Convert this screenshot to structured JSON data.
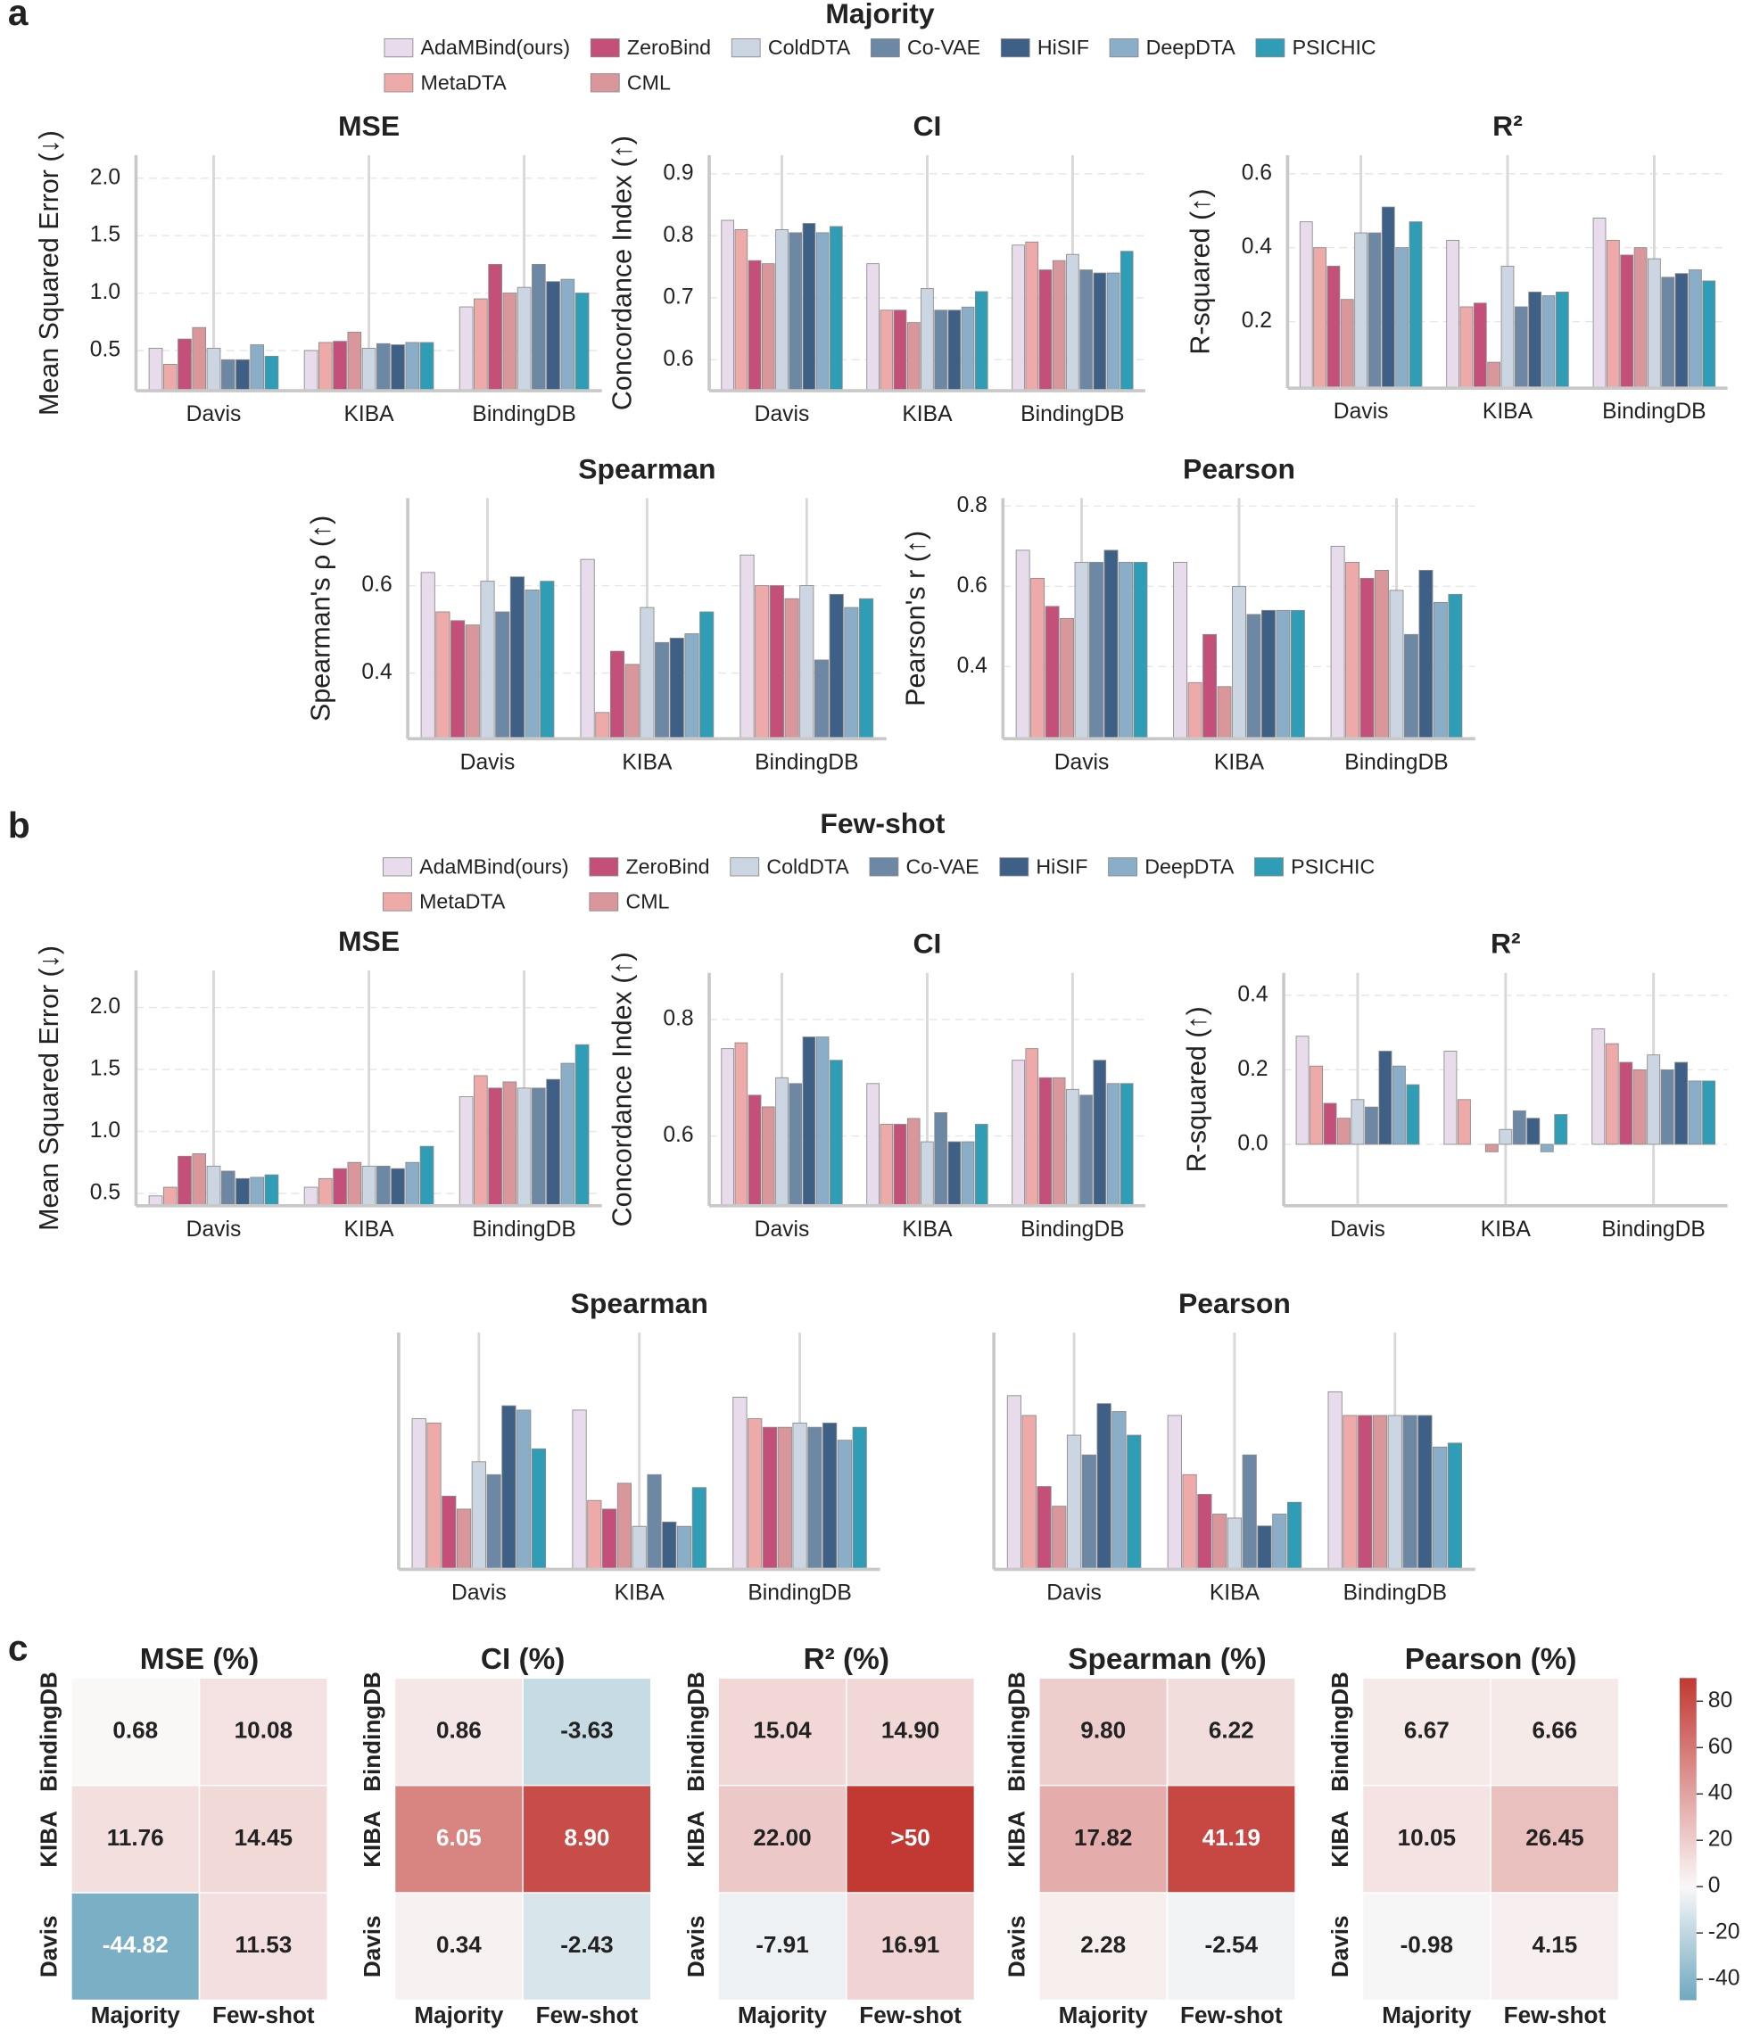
{
  "panels": [
    {
      "label": "a",
      "title": "Majority",
      "legend": [
        {
          "name": "AdaMBind(ours)",
          "color": "#e8dcec"
        },
        {
          "name": "MetaDTA",
          "color": "#eeaaa8"
        },
        {
          "name": "ZeroBind",
          "color": "#c4507a"
        },
        {
          "name": "CML",
          "color": "#d9979b"
        },
        {
          "name": "ColdDTA",
          "color": "#ccd6e2"
        },
        {
          "name": "Co-VAE",
          "color": "#6d88a5"
        },
        {
          "name": "HiSIF",
          "color": "#3e5f86"
        },
        {
          "name": "DeepDTA",
          "color": "#8aaec7"
        },
        {
          "name": "PSICHIC",
          "color": "#2f9db6"
        }
      ]
    },
    {
      "label": "b",
      "title": "Few-shot",
      "legend": [
        {
          "name": "AdaMBind(ours)",
          "color": "#e8dcec"
        },
        {
          "name": "MetaDTA",
          "color": "#eeaaa8"
        },
        {
          "name": "ZeroBind",
          "color": "#c4507a"
        },
        {
          "name": "CML",
          "color": "#d9979b"
        },
        {
          "name": "ColdDTA",
          "color": "#ccd6e2"
        },
        {
          "name": "Co-VAE",
          "color": "#6d88a5"
        },
        {
          "name": "HiSIF",
          "color": "#3e5f86"
        },
        {
          "name": "DeepDTA",
          "color": "#8aaec7"
        },
        {
          "name": "PSICHIC",
          "color": "#2f9db6"
        }
      ]
    },
    {
      "label": "c",
      "colorbar": {
        "lim": [
          -49,
          90
        ],
        "ticks": [
          -40,
          -20,
          0,
          20,
          40,
          60,
          80
        ]
      }
    }
  ],
  "chart_data": [
    {
      "type": "bar",
      "title": "MSE",
      "ylabel": "Mean Squared Error (↓)",
      "categories": [
        "Davis",
        "KIBA",
        "BindingDB"
      ],
      "ylim": [
        0.15,
        2.2
      ],
      "yticks": [
        0.5,
        {
          "value": 1,
          "label": "1.0"
        },
        1.5,
        {
          "value": 2,
          "label": "2.0"
        }
      ],
      "grid": true,
      "series": [
        {
          "values": [
            0.52,
            0.5,
            0.88
          ]
        },
        {
          "values": [
            0.38,
            0.57,
            0.95
          ]
        },
        {
          "values": [
            0.6,
            0.58,
            1.25
          ]
        },
        {
          "values": [
            0.7,
            0.66,
            1.0
          ]
        },
        {
          "values": [
            0.52,
            0.52,
            1.05
          ]
        },
        {
          "values": [
            0.42,
            0.56,
            1.25
          ]
        },
        {
          "values": [
            0.42,
            0.55,
            1.1
          ]
        },
        {
          "values": [
            0.55,
            0.57,
            1.12
          ]
        },
        {
          "values": [
            0.45,
            0.57,
            1.0
          ]
        }
      ]
    },
    {
      "type": "bar",
      "title": "CI",
      "ylabel": "Concordance Index (↑)",
      "categories": [
        "Davis",
        "KIBA",
        "BindingDB"
      ],
      "ylim": [
        0.55,
        0.93
      ],
      "yticks": [
        0.6,
        0.7,
        0.8,
        0.9
      ],
      "grid": true,
      "series": [
        {
          "values": [
            0.825,
            0.755,
            0.785
          ]
        },
        {
          "values": [
            0.81,
            0.68,
            0.79
          ]
        },
        {
          "values": [
            0.76,
            0.68,
            0.745
          ]
        },
        {
          "values": [
            0.755,
            0.66,
            0.76
          ]
        },
        {
          "values": [
            0.81,
            0.715,
            0.77
          ]
        },
        {
          "values": [
            0.805,
            0.68,
            0.745
          ]
        },
        {
          "values": [
            0.82,
            0.68,
            0.74
          ]
        },
        {
          "values": [
            0.805,
            0.685,
            0.74
          ]
        },
        {
          "values": [
            0.815,
            0.71,
            0.775
          ]
        }
      ]
    },
    {
      "type": "bar",
      "title": "R²",
      "ylabel": "R-squared (↑)",
      "categories": [
        "Davis",
        "KIBA",
        "BindingDB"
      ],
      "ylim": [
        0.02,
        0.65
      ],
      "yticks": [
        0.2,
        0.4,
        0.6
      ],
      "grid": true,
      "series": [
        {
          "values": [
            0.47,
            0.42,
            0.48
          ]
        },
        {
          "values": [
            0.4,
            0.24,
            0.42
          ]
        },
        {
          "values": [
            0.35,
            0.25,
            0.38
          ]
        },
        {
          "values": [
            0.26,
            0.09,
            0.4
          ]
        },
        {
          "values": [
            0.44,
            0.35,
            0.37
          ]
        },
        {
          "values": [
            0.44,
            0.24,
            0.32
          ]
        },
        {
          "values": [
            0.51,
            0.28,
            0.33
          ]
        },
        {
          "values": [
            0.4,
            0.27,
            0.34
          ]
        },
        {
          "values": [
            0.47,
            0.28,
            0.31
          ]
        }
      ]
    },
    {
      "type": "bar",
      "title": "Spearman",
      "ylabel": "Spearman's ρ (↑)",
      "categories": [
        "Davis",
        "KIBA",
        "BindingDB"
      ],
      "ylim": [
        0.25,
        0.8
      ],
      "yticks": [
        0.4,
        0.6
      ],
      "grid": true,
      "series": [
        {
          "values": [
            0.63,
            0.66,
            0.67
          ]
        },
        {
          "values": [
            0.54,
            0.31,
            0.6
          ]
        },
        {
          "values": [
            0.52,
            0.45,
            0.6
          ]
        },
        {
          "values": [
            0.51,
            0.42,
            0.57
          ]
        },
        {
          "values": [
            0.61,
            0.55,
            0.6
          ]
        },
        {
          "values": [
            0.54,
            0.47,
            0.43
          ]
        },
        {
          "values": [
            0.62,
            0.48,
            0.58
          ]
        },
        {
          "values": [
            0.59,
            0.49,
            0.55
          ]
        },
        {
          "values": [
            0.61,
            0.54,
            0.57
          ]
        }
      ]
    },
    {
      "type": "bar",
      "title": "Pearson",
      "ylabel": "Pearson's r (↑)",
      "categories": [
        "Davis",
        "KIBA",
        "BindingDB"
      ],
      "ylim": [
        0.22,
        0.82
      ],
      "yticks": [
        0.4,
        0.6,
        0.8
      ],
      "grid": true,
      "series": [
        {
          "values": [
            0.69,
            0.66,
            0.7
          ]
        },
        {
          "values": [
            0.62,
            0.36,
            0.66
          ]
        },
        {
          "values": [
            0.55,
            0.48,
            0.62
          ]
        },
        {
          "values": [
            0.52,
            0.35,
            0.64
          ]
        },
        {
          "values": [
            0.66,
            0.6,
            0.59
          ]
        },
        {
          "values": [
            0.66,
            0.53,
            0.48
          ]
        },
        {
          "values": [
            0.69,
            0.54,
            0.64
          ]
        },
        {
          "values": [
            0.66,
            0.54,
            0.56
          ]
        },
        {
          "values": [
            0.66,
            0.54,
            0.58
          ]
        }
      ]
    },
    {
      "type": "bar",
      "title": "MSE",
      "ylabel": "Mean Squared Error (↓)",
      "categories": [
        "Davis",
        "KIBA",
        "BindingDB"
      ],
      "ylim": [
        0.4,
        2.3
      ],
      "yticks": [
        0.5,
        {
          "value": 1,
          "label": "1.0"
        },
        1.5,
        {
          "value": 2,
          "label": "2.0"
        }
      ],
      "grid": true,
      "series": [
        {
          "values": [
            0.48,
            0.55,
            1.28
          ]
        },
        {
          "values": [
            0.55,
            0.62,
            1.45
          ]
        },
        {
          "values": [
            0.8,
            0.7,
            1.35
          ]
        },
        {
          "values": [
            0.82,
            0.75,
            1.4
          ]
        },
        {
          "values": [
            0.72,
            0.72,
            1.35
          ]
        },
        {
          "values": [
            0.68,
            0.72,
            1.35
          ]
        },
        {
          "values": [
            0.62,
            0.7,
            1.42
          ]
        },
        {
          "values": [
            0.63,
            0.75,
            1.55
          ]
        },
        {
          "values": [
            0.65,
            0.88,
            1.7
          ]
        }
      ]
    },
    {
      "type": "bar",
      "title": "CI",
      "ylabel": "Concordance Index (↑)",
      "categories": [
        "Davis",
        "KIBA",
        "BindingDB"
      ],
      "ylim": [
        0.48,
        0.88
      ],
      "yticks": [
        0.6,
        0.8
      ],
      "grid": true,
      "series": [
        {
          "values": [
            0.75,
            0.69,
            0.73
          ]
        },
        {
          "values": [
            0.76,
            0.62,
            0.75
          ]
        },
        {
          "values": [
            0.67,
            0.62,
            0.7
          ]
        },
        {
          "values": [
            0.65,
            0.63,
            0.7
          ]
        },
        {
          "values": [
            0.7,
            0.59,
            0.68
          ]
        },
        {
          "values": [
            0.69,
            0.64,
            0.67
          ]
        },
        {
          "values": [
            0.77,
            0.59,
            0.73
          ]
        },
        {
          "values": [
            0.77,
            0.59,
            0.69
          ]
        },
        {
          "values": [
            0.73,
            0.62,
            0.69
          ]
        }
      ]
    },
    {
      "type": "bar",
      "title": "R²",
      "ylabel": "R-squared (↑)",
      "categories": [
        "Davis",
        "KIBA",
        "BindingDB"
      ],
      "ylim": [
        -0.165,
        0.46
      ],
      "yticks": [
        {
          "value": 0,
          "label": "0.0"
        },
        0.2,
        0.4
      ],
      "grid": true,
      "series": [
        {
          "values": [
            0.29,
            0.25,
            0.31
          ]
        },
        {
          "values": [
            0.21,
            0.12,
            0.27
          ]
        },
        {
          "values": [
            0.11,
            0.0,
            0.22
          ]
        },
        {
          "values": [
            0.07,
            -0.02,
            0.2
          ]
        },
        {
          "values": [
            0.12,
            0.04,
            0.24
          ]
        },
        {
          "values": [
            0.1,
            0.09,
            0.2
          ]
        },
        {
          "values": [
            0.25,
            0.07,
            0.22
          ]
        },
        {
          "values": [
            0.21,
            -0.02,
            0.17
          ]
        },
        {
          "values": [
            0.16,
            0.08,
            0.17
          ]
        }
      ]
    },
    {
      "type": "bar",
      "title": "Spearman",
      "categories": [
        "Davis",
        "KIBA",
        "BindingDB"
      ],
      "ylim": [
        0.25,
        0.8
      ],
      "series": [
        {
          "values": [
            0.6,
            0.62,
            0.65
          ]
        },
        {
          "values": [
            0.59,
            0.41,
            0.6
          ]
        },
        {
          "values": [
            0.42,
            0.39,
            0.58
          ]
        },
        {
          "values": [
            0.39,
            0.45,
            0.58
          ]
        },
        {
          "values": [
            0.5,
            0.35,
            0.59
          ]
        },
        {
          "values": [
            0.47,
            0.47,
            0.58
          ]
        },
        {
          "values": [
            0.63,
            0.36,
            0.59
          ]
        },
        {
          "values": [
            0.62,
            0.35,
            0.55
          ]
        },
        {
          "values": [
            0.53,
            0.44,
            0.58
          ]
        }
      ]
    },
    {
      "type": "bar",
      "title": "Pearson",
      "categories": [
        "Davis",
        "KIBA",
        "BindingDB"
      ],
      "ylim": [
        0.22,
        0.82
      ],
      "series": [
        {
          "values": [
            0.66,
            0.61,
            0.67
          ]
        },
        {
          "values": [
            0.61,
            0.46,
            0.61
          ]
        },
        {
          "values": [
            0.43,
            0.41,
            0.61
          ]
        },
        {
          "values": [
            0.38,
            0.36,
            0.61
          ]
        },
        {
          "values": [
            0.56,
            0.35,
            0.61
          ]
        },
        {
          "values": [
            0.51,
            0.51,
            0.61
          ]
        },
        {
          "values": [
            0.64,
            0.33,
            0.61
          ]
        },
        {
          "values": [
            0.62,
            0.36,
            0.53
          ]
        },
        {
          "values": [
            0.56,
            0.39,
            0.54
          ]
        }
      ]
    },
    {
      "type": "heatmap",
      "title": "MSE (%)",
      "rows": [
        "BindingDB",
        "KIBA",
        "Davis"
      ],
      "columns": [
        "Majority",
        "Few-shot"
      ],
      "clim": [
        -49,
        90
      ],
      "values": [
        [
          0.68,
          10.08
        ],
        [
          11.76,
          14.45
        ],
        [
          -44.82,
          11.53
        ]
      ],
      "value_labels": [
        [
          "0.68",
          "10.08"
        ],
        [
          "11.76",
          "14.45"
        ],
        [
          "-44.82",
          "11.53"
        ]
      ]
    },
    {
      "type": "heatmap",
      "title": "CI (%)",
      "rows": [
        "BindingDB",
        "KIBA",
        "Davis"
      ],
      "columns": [
        "Majority",
        "Few-shot"
      ],
      "clim": [
        -10,
        10
      ],
      "values": [
        [
          0.86,
          -3.63
        ],
        [
          6.05,
          8.9
        ],
        [
          0.34,
          -2.43
        ]
      ],
      "value_labels": [
        [
          "0.86",
          "-3.63"
        ],
        [
          "6.05",
          "8.90"
        ],
        [
          "0.34",
          "-2.43"
        ]
      ]
    },
    {
      "type": "heatmap",
      "title": "R² (%)",
      "rows": [
        "BindingDB",
        "KIBA",
        "Davis"
      ],
      "columns": [
        "Majority",
        "Few-shot"
      ],
      "clim": [
        -90,
        90
      ],
      "values": [
        [
          15.04,
          14.9
        ],
        [
          22.0,
          90
        ],
        [
          -7.91,
          16.91
        ]
      ],
      "value_labels": [
        [
          "15.04",
          "14.90"
        ],
        [
          "22.00",
          ">50"
        ],
        [
          "-7.91",
          "16.91"
        ]
      ]
    },
    {
      "type": "heatmap",
      "title": "Spearman (%)",
      "rows": [
        "BindingDB",
        "KIBA",
        "Davis"
      ],
      "columns": [
        "Majority",
        "Few-shot"
      ],
      "clim": [
        -45,
        45
      ],
      "values": [
        [
          9.8,
          6.22
        ],
        [
          17.82,
          41.19
        ],
        [
          2.28,
          -2.54
        ]
      ],
      "value_labels": [
        [
          "9.80",
          "6.22"
        ],
        [
          "17.82",
          "41.19"
        ],
        [
          "2.28",
          "-2.54"
        ]
      ]
    },
    {
      "type": "heatmap",
      "title": "Pearson (%)",
      "rows": [
        "BindingDB",
        "KIBA",
        "Davis"
      ],
      "columns": [
        "Majority",
        "Few-shot"
      ],
      "clim": [
        -49,
        90
      ],
      "values": [
        [
          6.67,
          6.66
        ],
        [
          10.05,
          26.45
        ],
        [
          -0.98,
          4.15
        ]
      ],
      "value_labels": [
        [
          "6.67",
          "6.66"
        ],
        [
          "10.05",
          "26.45"
        ],
        [
          "-0.98",
          "4.15"
        ]
      ]
    }
  ]
}
